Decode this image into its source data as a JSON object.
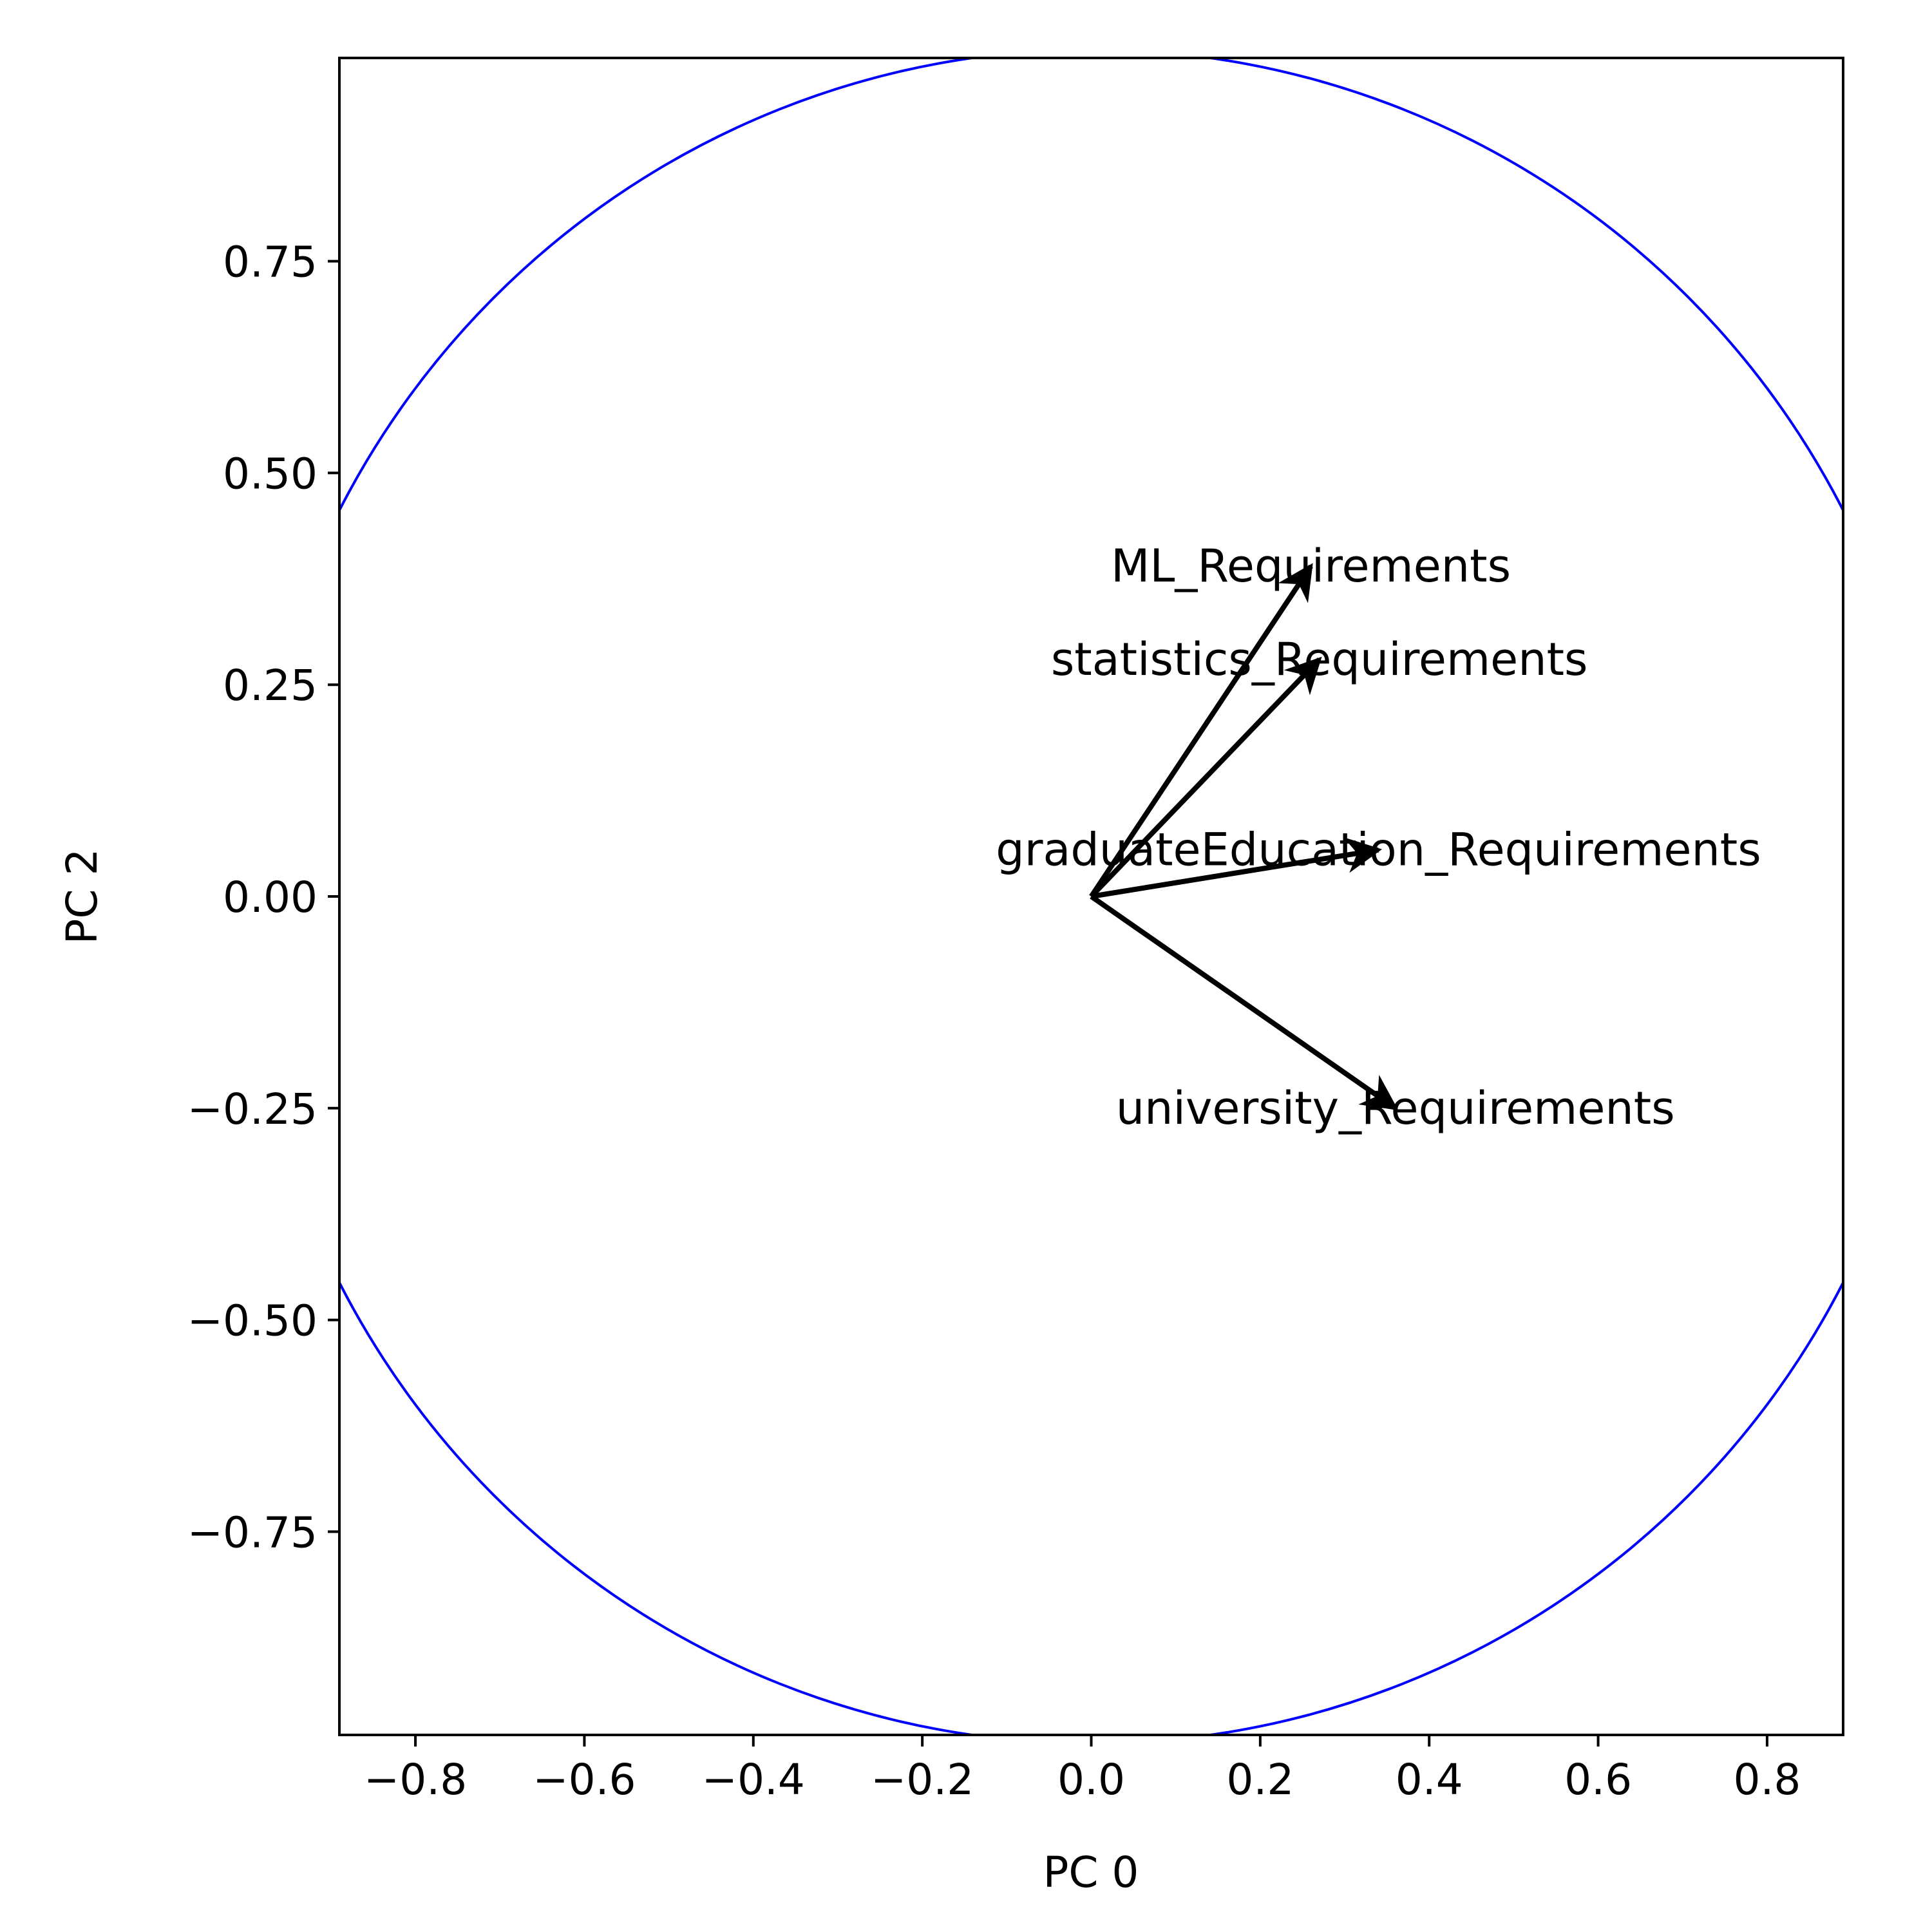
{
  "chart_data": {
    "type": "biplot",
    "xlabel": "PC 0",
    "ylabel": "PC 2",
    "xlim": [
      -0.89,
      0.89
    ],
    "ylim": [
      -0.99,
      0.99
    ],
    "xticks": [
      -0.8,
      -0.6,
      -0.4,
      -0.2,
      0.0,
      0.2,
      0.4,
      0.6,
      0.8
    ],
    "xtick_labels": [
      "−0.8",
      "−0.6",
      "−0.4",
      "−0.2",
      "0.0",
      "0.2",
      "0.4",
      "0.6",
      "0.8"
    ],
    "yticks": [
      0.75,
      0.5,
      0.25,
      0.0,
      -0.25,
      -0.5,
      -0.75
    ],
    "ytick_labels": [
      "0.75",
      "0.50",
      "0.25",
      "0.00",
      "−0.25",
      "−0.50",
      "−0.75"
    ],
    "circle": {
      "center": [
        0,
        0
      ],
      "radius": 1,
      "color": "#0000ff"
    },
    "arrow_color": "#000000",
    "vectors": [
      {
        "label": "ML_Requirements",
        "x": 0.26,
        "y": 0.39
      },
      {
        "label": "statistics_Requirements",
        "x": 0.27,
        "y": 0.28
      },
      {
        "label": "graduateEducation_Requirements",
        "x": 0.34,
        "y": 0.055
      },
      {
        "label": "university_Requirements",
        "x": 0.36,
        "y": -0.25
      }
    ]
  }
}
